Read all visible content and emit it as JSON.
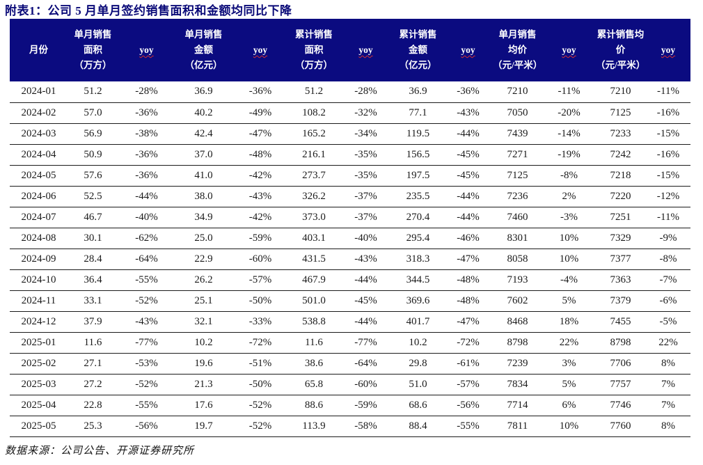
{
  "page": {
    "title": "附表1：公司 5 月单月签约销售面积和金额均同比下降",
    "source_note": "数据来源：公司公告、开源证券研究所"
  },
  "colors": {
    "header_bg": "#0b0b80",
    "title_text": "#0a0a78",
    "header_text": "#ffffff",
    "body_text": "#1a1a1a",
    "row_border": "#1a1a1a",
    "yoy_underline": "#d43030"
  },
  "table": {
    "columns": [
      {
        "id": "month",
        "lines": [
          "月份"
        ],
        "spellcheck_underline": false
      },
      {
        "id": "monthly-sales-area",
        "lines": [
          "单月销售",
          "面积",
          "（万方）"
        ],
        "spellcheck_underline": false
      },
      {
        "id": "monthly-sales-area-yoy",
        "lines": [
          "yoy"
        ],
        "spellcheck_underline": true
      },
      {
        "id": "monthly-sales-amount",
        "lines": [
          "单月销售",
          "金额",
          "（亿元）"
        ],
        "spellcheck_underline": false
      },
      {
        "id": "monthly-sales-amount-yoy",
        "lines": [
          "yoy"
        ],
        "spellcheck_underline": true
      },
      {
        "id": "cumulative-sales-area",
        "lines": [
          "累计销售",
          "面积",
          "（万方）"
        ],
        "spellcheck_underline": false
      },
      {
        "id": "cumulative-sales-area-yoy",
        "lines": [
          "yoy"
        ],
        "spellcheck_underline": true
      },
      {
        "id": "cumulative-sales-amount",
        "lines": [
          "累计销售",
          "金额",
          "（亿元）"
        ],
        "spellcheck_underline": false
      },
      {
        "id": "cumulative-sales-amount-yoy",
        "lines": [
          "yoy"
        ],
        "spellcheck_underline": true
      },
      {
        "id": "monthly-avg-price",
        "lines": [
          "单月销售",
          "均价",
          "（元/平米）"
        ],
        "spellcheck_underline": false
      },
      {
        "id": "monthly-avg-price-yoy",
        "lines": [
          "yoy"
        ],
        "spellcheck_underline": true
      },
      {
        "id": "cumulative-avg-price",
        "lines": [
          "累计销售均",
          "价",
          "（元/平米）"
        ],
        "spellcheck_underline": false
      },
      {
        "id": "cumulative-avg-price-yoy",
        "lines": [
          "yoy"
        ],
        "spellcheck_underline": true
      }
    ],
    "rows": [
      [
        "2024-01",
        "51.2",
        "-28%",
        "36.9",
        "-36%",
        "51.2",
        "-28%",
        "36.9",
        "-36%",
        "7210",
        "-11%",
        "7210",
        "-11%"
      ],
      [
        "2024-02",
        "57.0",
        "-36%",
        "40.2",
        "-49%",
        "108.2",
        "-32%",
        "77.1",
        "-43%",
        "7050",
        "-20%",
        "7125",
        "-16%"
      ],
      [
        "2024-03",
        "56.9",
        "-38%",
        "42.4",
        "-47%",
        "165.2",
        "-34%",
        "119.5",
        "-44%",
        "7439",
        "-14%",
        "7233",
        "-15%"
      ],
      [
        "2024-04",
        "50.9",
        "-36%",
        "37.0",
        "-48%",
        "216.1",
        "-35%",
        "156.5",
        "-45%",
        "7271",
        "-19%",
        "7242",
        "-16%"
      ],
      [
        "2024-05",
        "57.6",
        "-36%",
        "41.0",
        "-42%",
        "273.7",
        "-35%",
        "197.5",
        "-45%",
        "7125",
        "-8%",
        "7218",
        "-15%"
      ],
      [
        "2024-06",
        "52.5",
        "-44%",
        "38.0",
        "-43%",
        "326.2",
        "-37%",
        "235.5",
        "-44%",
        "7236",
        "2%",
        "7220",
        "-12%"
      ],
      [
        "2024-07",
        "46.7",
        "-40%",
        "34.9",
        "-42%",
        "373.0",
        "-37%",
        "270.4",
        "-44%",
        "7460",
        "-3%",
        "7251",
        "-11%"
      ],
      [
        "2024-08",
        "30.1",
        "-62%",
        "25.0",
        "-59%",
        "403.1",
        "-40%",
        "295.4",
        "-46%",
        "8301",
        "10%",
        "7329",
        "-9%"
      ],
      [
        "2024-09",
        "28.4",
        "-64%",
        "22.9",
        "-60%",
        "431.5",
        "-43%",
        "318.3",
        "-47%",
        "8058",
        "10%",
        "7377",
        "-8%"
      ],
      [
        "2024-10",
        "36.4",
        "-55%",
        "26.2",
        "-57%",
        "467.9",
        "-44%",
        "344.5",
        "-48%",
        "7193",
        "-4%",
        "7363",
        "-7%"
      ],
      [
        "2024-11",
        "33.1",
        "-52%",
        "25.1",
        "-50%",
        "501.0",
        "-45%",
        "369.6",
        "-48%",
        "7602",
        "5%",
        "7379",
        "-6%"
      ],
      [
        "2024-12",
        "37.9",
        "-43%",
        "32.1",
        "-33%",
        "538.8",
        "-44%",
        "401.7",
        "-47%",
        "8468",
        "18%",
        "7455",
        "-5%"
      ],
      [
        "2025-01",
        "11.6",
        "-77%",
        "10.2",
        "-72%",
        "11.6",
        "-77%",
        "10.2",
        "-72%",
        "8798",
        "22%",
        "8798",
        "22%"
      ],
      [
        "2025-02",
        "27.1",
        "-53%",
        "19.6",
        "-51%",
        "38.6",
        "-64%",
        "29.8",
        "-61%",
        "7239",
        "3%",
        "7706",
        "8%"
      ],
      [
        "2025-03",
        "27.2",
        "-52%",
        "21.3",
        "-50%",
        "65.8",
        "-60%",
        "51.0",
        "-57%",
        "7834",
        "5%",
        "7757",
        "7%"
      ],
      [
        "2025-04",
        "22.8",
        "-55%",
        "17.6",
        "-52%",
        "88.6",
        "-59%",
        "68.6",
        "-56%",
        "7714",
        "6%",
        "7746",
        "7%"
      ],
      [
        "2025-05",
        "25.3",
        "-56%",
        "19.7",
        "-52%",
        "113.9",
        "-58%",
        "88.4",
        "-55%",
        "7811",
        "10%",
        "7760",
        "8%"
      ]
    ]
  }
}
